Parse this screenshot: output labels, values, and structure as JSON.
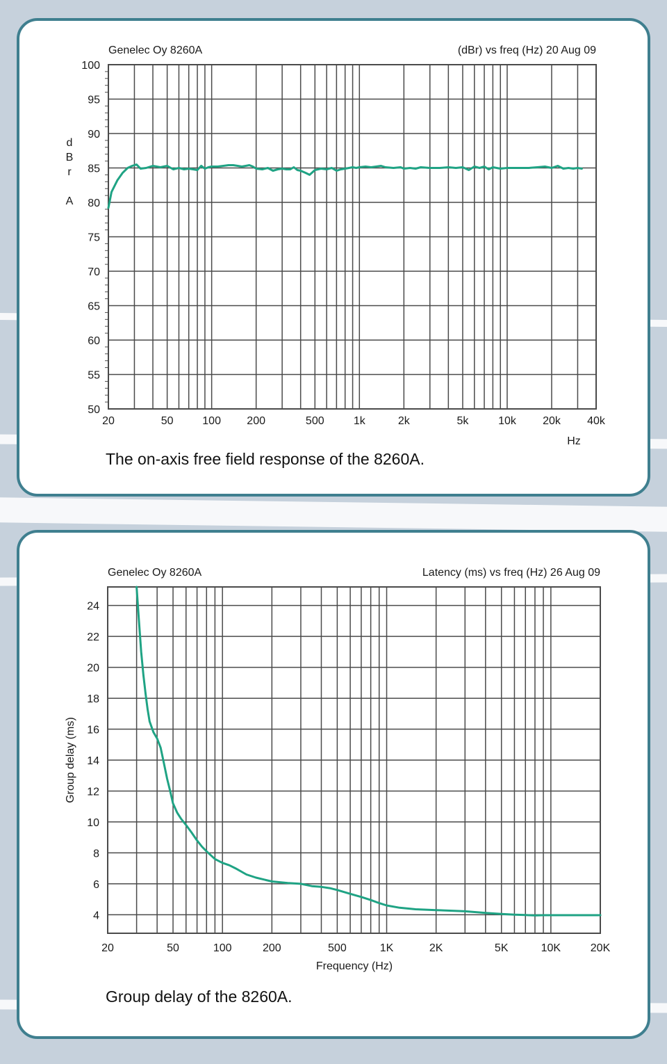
{
  "colors": {
    "background": "#c6d1dc",
    "card_border": "#3f7f8f",
    "grid": "#4a4a4a",
    "curve": "#1fa384"
  },
  "chart_data": [
    {
      "type": "line",
      "header_left": "Genelec Oy 8260A",
      "header_right": "(dBr) vs freq (Hz) 20 Aug 09",
      "xlabel": "Hz",
      "ylabel": [
        "d",
        "B",
        "r",
        "",
        "A"
      ],
      "x_scale": "log",
      "xlim": [
        20,
        40000
      ],
      "ylim": [
        50,
        100
      ],
      "x_ticks": [
        {
          "value": 20,
          "label": "20"
        },
        {
          "value": 50,
          "label": "50"
        },
        {
          "value": 100,
          "label": "100"
        },
        {
          "value": 200,
          "label": "200"
        },
        {
          "value": 500,
          "label": "500"
        },
        {
          "value": 1000,
          "label": "1k"
        },
        {
          "value": 2000,
          "label": "2k"
        },
        {
          "value": 5000,
          "label": "5k"
        },
        {
          "value": 10000,
          "label": "10k"
        },
        {
          "value": 20000,
          "label": "20k"
        },
        {
          "value": 40000,
          "label": "40k"
        }
      ],
      "x_gridlines": [
        30,
        40,
        50,
        60,
        70,
        80,
        90,
        100,
        200,
        300,
        400,
        500,
        600,
        700,
        800,
        900,
        1000,
        2000,
        3000,
        4000,
        5000,
        6000,
        7000,
        8000,
        9000,
        10000,
        20000,
        30000
      ],
      "y_ticks": [
        50,
        55,
        60,
        65,
        70,
        75,
        80,
        85,
        90,
        95,
        100
      ],
      "caption": "The on-axis free field response of the 8260A.",
      "series": [
        {
          "name": "On-axis free field response",
          "x": [
            20,
            21,
            23,
            25,
            27,
            29,
            31,
            33,
            36,
            40,
            45,
            50,
            55,
            60,
            65,
            70,
            75,
            80,
            85,
            90,
            95,
            100,
            110,
            120,
            130,
            140,
            150,
            160,
            170,
            180,
            190,
            200,
            220,
            240,
            260,
            280,
            300,
            320,
            340,
            360,
            380,
            400,
            430,
            460,
            500,
            550,
            600,
            650,
            700,
            750,
            800,
            850,
            900,
            950,
            1000,
            1100,
            1200,
            1300,
            1400,
            1500,
            1700,
            1900,
            2000,
            2200,
            2400,
            2600,
            3000,
            3500,
            4000,
            4500,
            5000,
            5500,
            6000,
            6500,
            7000,
            7500,
            8000,
            9000,
            10000,
            11000,
            12000,
            14000,
            16000,
            18000,
            20000,
            22000,
            24000,
            26000,
            28000,
            30000,
            32000
          ],
          "y": [
            79.2,
            81.5,
            83.2,
            84.3,
            85.0,
            85.3,
            85.5,
            84.9,
            85.0,
            85.3,
            85.1,
            85.3,
            84.8,
            85.0,
            84.8,
            84.9,
            84.8,
            84.7,
            85.3,
            84.9,
            85.1,
            85.2,
            85.2,
            85.3,
            85.4,
            85.4,
            85.3,
            85.2,
            85.3,
            85.4,
            85.2,
            84.9,
            84.8,
            85.0,
            84.6,
            84.8,
            84.9,
            84.8,
            84.8,
            85.1,
            84.7,
            84.6,
            84.3,
            84.0,
            84.7,
            84.9,
            84.8,
            85.0,
            84.6,
            84.8,
            84.9,
            85.0,
            85.1,
            85.0,
            85.1,
            85.2,
            85.1,
            85.2,
            85.3,
            85.1,
            85.0,
            85.1,
            84.9,
            85.0,
            84.9,
            85.1,
            85.0,
            85.0,
            85.1,
            85.0,
            85.1,
            84.7,
            85.2,
            85.0,
            85.2,
            84.8,
            85.1,
            84.9,
            85.0,
            85.0,
            85.0,
            85.0,
            85.1,
            85.2,
            85.0,
            85.3,
            84.9,
            85.0,
            84.9,
            85.0,
            84.9
          ]
        }
      ]
    },
    {
      "type": "line",
      "header_left": "Genelec Oy 8260A",
      "header_right": "Latency (ms) vs freq (Hz) 26 Aug 09",
      "xlabel": "Frequency (Hz)",
      "ylabel": "Group delay (ms)",
      "x_scale": "log",
      "xlim": [
        20,
        20000
      ],
      "ylim": [
        2.8,
        25.2
      ],
      "x_ticks": [
        {
          "value": 20,
          "label": "20"
        },
        {
          "value": 50,
          "label": "50"
        },
        {
          "value": 100,
          "label": "100"
        },
        {
          "value": 200,
          "label": "200"
        },
        {
          "value": 500,
          "label": "500"
        },
        {
          "value": 1000,
          "label": "1K"
        },
        {
          "value": 2000,
          "label": "2K"
        },
        {
          "value": 5000,
          "label": "5K"
        },
        {
          "value": 10000,
          "label": "10K"
        },
        {
          "value": 20000,
          "label": "20K"
        }
      ],
      "x_gridlines": [
        30,
        40,
        50,
        60,
        70,
        80,
        90,
        100,
        200,
        300,
        400,
        500,
        600,
        700,
        800,
        900,
        1000,
        2000,
        3000,
        4000,
        5000,
        6000,
        7000,
        8000,
        9000,
        10000
      ],
      "y_ticks": [
        4,
        6,
        8,
        10,
        12,
        14,
        16,
        18,
        20,
        22,
        24
      ],
      "caption": "Group delay of the 8260A.",
      "series": [
        {
          "name": "Group delay",
          "x": [
            30,
            31,
            32,
            33,
            34,
            35,
            36,
            38,
            40,
            42,
            44,
            46,
            48,
            50,
            53,
            56,
            60,
            65,
            70,
            75,
            80,
            90,
            100,
            110,
            120,
            140,
            160,
            200,
            250,
            300,
            350,
            400,
            450,
            500,
            600,
            700,
            800,
            900,
            1000,
            1200,
            1500,
            2000,
            3000,
            4000,
            5000,
            6000,
            7000,
            8000,
            9000,
            10000,
            12000,
            15000,
            20000
          ],
          "y": [
            25.2,
            23.0,
            21.0,
            19.5,
            18.3,
            17.3,
            16.5,
            15.8,
            15.4,
            14.8,
            13.8,
            12.8,
            12.0,
            11.2,
            10.6,
            10.2,
            9.8,
            9.3,
            8.8,
            8.4,
            8.1,
            7.6,
            7.35,
            7.2,
            7.0,
            6.6,
            6.4,
            6.15,
            6.05,
            6.0,
            5.85,
            5.8,
            5.72,
            5.6,
            5.35,
            5.15,
            4.95,
            4.75,
            4.6,
            4.45,
            4.35,
            4.3,
            4.22,
            4.12,
            4.05,
            4.0,
            3.98,
            3.95,
            3.97,
            3.97,
            3.97,
            3.97,
            3.97
          ]
        }
      ]
    }
  ]
}
